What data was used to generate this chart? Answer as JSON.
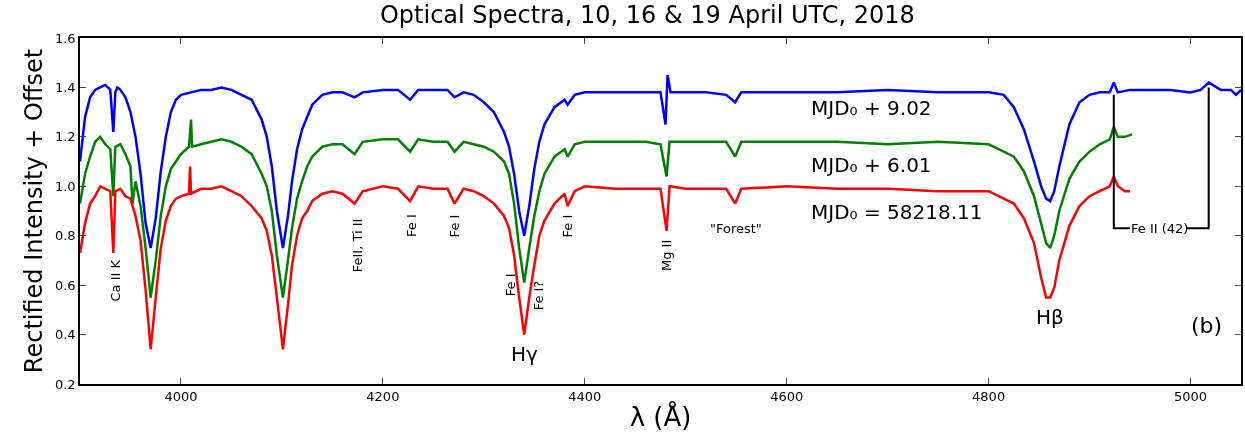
{
  "chart_data": {
    "type": "line",
    "title": "Optical Spectra, 10, 16 & 19 April UTC, 2018",
    "xlabel": "λ (Å)",
    "ylabel": "Rectified Intensity + Offset",
    "xlim": [
      3900,
      5050
    ],
    "xticks": [
      4000,
      4200,
      4400,
      4600,
      4800,
      5000
    ],
    "ylim": [
      0.2,
      1.6
    ],
    "yticks": [
      0.2,
      0.4,
      0.6,
      0.8,
      {
        "value": 1,
        "label": "1.0"
      },
      1.2,
      1.4,
      1.6
    ],
    "grid": false,
    "legend": false,
    "marker": "none",
    "line_style": "solid",
    "series": [
      {
        "name": "MJD₀ + 9.02",
        "color": "#0000ff",
        "x": [
          3900,
          3905,
          3910,
          3915,
          3920,
          3925,
          3930,
          3933,
          3935,
          3937,
          3940,
          3945,
          3950,
          3955,
          3960,
          3965,
          3970,
          3975,
          3980,
          3985,
          3990,
          3995,
          4000,
          4010,
          4020,
          4030,
          4040,
          4050,
          4060,
          4070,
          4080,
          4085,
          4090,
          4095,
          4101,
          4106,
          4110,
          4115,
          4120,
          4125,
          4130,
          4140,
          4150,
          4160,
          4172,
          4180,
          4200,
          4215,
          4227,
          4235,
          4250,
          4264,
          4271,
          4280,
          4290,
          4300,
          4310,
          4320,
          4325,
          4330,
          4335,
          4340,
          4345,
          4350,
          4355,
          4360,
          4370,
          4380,
          4383,
          4390,
          4400,
          4430,
          4460,
          4475,
          4480,
          4482,
          4485,
          4500,
          4520,
          4540,
          4549,
          4555,
          4600,
          4650,
          4700,
          4750,
          4800,
          4815,
          4825,
          4835,
          4845,
          4852,
          4857,
          4861,
          4865,
          4870,
          4880,
          4890,
          4900,
          4910,
          4920,
          4924,
          4928,
          4940,
          4960,
          4980,
          5000,
          5010,
          5018,
          5030,
          5040,
          5045,
          5050
        ],
        "values": [
          1.1,
          1.28,
          1.36,
          1.39,
          1.4,
          1.41,
          1.39,
          1.22,
          1.38,
          1.4,
          1.39,
          1.36,
          1.3,
          1.2,
          1.05,
          0.85,
          0.75,
          0.87,
          1.06,
          1.2,
          1.3,
          1.35,
          1.37,
          1.38,
          1.39,
          1.39,
          1.4,
          1.39,
          1.37,
          1.35,
          1.27,
          1.2,
          1.08,
          0.9,
          0.75,
          0.88,
          1.02,
          1.15,
          1.23,
          1.28,
          1.33,
          1.37,
          1.38,
          1.38,
          1.36,
          1.38,
          1.39,
          1.39,
          1.35,
          1.39,
          1.39,
          1.39,
          1.36,
          1.38,
          1.37,
          1.34,
          1.3,
          1.22,
          1.16,
          1.05,
          0.9,
          0.8,
          0.92,
          1.07,
          1.18,
          1.25,
          1.32,
          1.35,
          1.33,
          1.37,
          1.38,
          1.38,
          1.38,
          1.38,
          1.25,
          1.45,
          1.38,
          1.38,
          1.38,
          1.37,
          1.34,
          1.38,
          1.38,
          1.38,
          1.39,
          1.38,
          1.38,
          1.37,
          1.32,
          1.23,
          1.1,
          1.0,
          0.95,
          0.94,
          0.98,
          1.08,
          1.25,
          1.34,
          1.37,
          1.38,
          1.38,
          1.42,
          1.38,
          1.39,
          1.39,
          1.39,
          1.38,
          1.39,
          1.42,
          1.39,
          1.39,
          1.37,
          1.39
        ]
      },
      {
        "name": "MJD₀ + 6.01",
        "color": "#008000",
        "x": [
          3900,
          3905,
          3910,
          3915,
          3920,
          3925,
          3930,
          3933,
          3935,
          3940,
          3945,
          3950,
          3952,
          3955,
          3960,
          3965,
          3970,
          3975,
          3980,
          3985,
          3990,
          3995,
          4000,
          4008,
          4010,
          4011,
          4020,
          4030,
          4040,
          4050,
          4060,
          4070,
          4080,
          4085,
          4090,
          4095,
          4101,
          4106,
          4110,
          4115,
          4120,
          4125,
          4130,
          4140,
          4150,
          4160,
          4172,
          4180,
          4200,
          4215,
          4227,
          4235,
          4250,
          4264,
          4271,
          4280,
          4290,
          4300,
          4310,
          4320,
          4325,
          4330,
          4335,
          4340,
          4345,
          4350,
          4355,
          4360,
          4370,
          4380,
          4383,
          4390,
          4400,
          4430,
          4460,
          4475,
          4481,
          4484,
          4500,
          4520,
          4540,
          4549,
          4555,
          4600,
          4650,
          4700,
          4750,
          4800,
          4815,
          4825,
          4835,
          4845,
          4852,
          4857,
          4861,
          4865,
          4870,
          4880,
          4890,
          4900,
          4910,
          4920,
          4924,
          4928,
          4935,
          4942
        ],
        "values": [
          0.93,
          1.05,
          1.12,
          1.18,
          1.2,
          1.17,
          1.15,
          0.96,
          1.16,
          1.17,
          1.13,
          1.08,
          0.93,
          1.02,
          0.92,
          0.75,
          0.55,
          0.7,
          0.88,
          1.0,
          1.07,
          1.1,
          1.13,
          1.16,
          1.27,
          1.16,
          1.17,
          1.18,
          1.19,
          1.18,
          1.16,
          1.13,
          1.05,
          1.0,
          0.9,
          0.72,
          0.55,
          0.7,
          0.83,
          0.95,
          1.02,
          1.08,
          1.12,
          1.16,
          1.17,
          1.17,
          1.13,
          1.18,
          1.19,
          1.19,
          1.14,
          1.19,
          1.18,
          1.18,
          1.14,
          1.18,
          1.17,
          1.16,
          1.14,
          1.1,
          1.05,
          0.93,
          0.75,
          0.61,
          0.75,
          0.88,
          0.98,
          1.05,
          1.12,
          1.15,
          1.12,
          1.17,
          1.18,
          1.18,
          1.18,
          1.17,
          1.04,
          1.18,
          1.18,
          1.18,
          1.18,
          1.12,
          1.18,
          1.18,
          1.18,
          1.17,
          1.18,
          1.17,
          1.14,
          1.12,
          1.06,
          0.96,
          0.85,
          0.77,
          0.75,
          0.8,
          0.9,
          1.03,
          1.1,
          1.14,
          1.17,
          1.19,
          1.24,
          1.2,
          1.2,
          1.21
        ]
      },
      {
        "name": "MJD₀ = 58218.11",
        "color": "#ff0000",
        "x": [
          3900,
          3905,
          3910,
          3915,
          3920,
          3925,
          3930,
          3933,
          3935,
          3940,
          3945,
          3950,
          3955,
          3960,
          3965,
          3970,
          3975,
          3980,
          3985,
          3990,
          3995,
          4000,
          4008,
          4009,
          4010,
          4020,
          4030,
          4040,
          4050,
          4060,
          4070,
          4080,
          4085,
          4090,
          4095,
          4101,
          4106,
          4110,
          4115,
          4120,
          4125,
          4130,
          4140,
          4150,
          4160,
          4172,
          4180,
          4200,
          4215,
          4227,
          4235,
          4250,
          4264,
          4271,
          4280,
          4290,
          4300,
          4310,
          4320,
          4325,
          4330,
          4335,
          4340,
          4345,
          4350,
          4355,
          4360,
          4370,
          4380,
          4383,
          4390,
          4400,
          4430,
          4460,
          4475,
          4481,
          4484,
          4500,
          4520,
          4540,
          4549,
          4555,
          4600,
          4650,
          4700,
          4750,
          4800,
          4815,
          4825,
          4835,
          4845,
          4852,
          4857,
          4861,
          4865,
          4870,
          4880,
          4890,
          4900,
          4910,
          4920,
          4924,
          4928,
          4935,
          4940
        ],
        "values": [
          0.73,
          0.85,
          0.93,
          0.96,
          1.0,
          0.99,
          0.98,
          0.73,
          0.98,
          0.99,
          0.96,
          0.95,
          0.88,
          0.78,
          0.58,
          0.34,
          0.55,
          0.75,
          0.86,
          0.92,
          0.95,
          0.96,
          0.97,
          1.08,
          0.97,
          0.99,
          0.99,
          1.0,
          0.98,
          0.96,
          0.92,
          0.87,
          0.82,
          0.72,
          0.55,
          0.34,
          0.52,
          0.68,
          0.8,
          0.87,
          0.9,
          0.94,
          0.97,
          0.98,
          0.97,
          0.93,
          0.98,
          1.0,
          0.99,
          0.94,
          1.0,
          0.99,
          0.99,
          0.93,
          0.99,
          0.98,
          0.96,
          0.93,
          0.88,
          0.83,
          0.72,
          0.55,
          0.4,
          0.55,
          0.68,
          0.8,
          0.86,
          0.93,
          0.97,
          0.92,
          0.98,
          1.0,
          0.99,
          0.99,
          0.99,
          0.82,
          1.0,
          0.99,
          0.99,
          0.99,
          0.93,
          0.99,
          1.0,
          0.99,
          0.99,
          0.98,
          0.98,
          0.95,
          0.93,
          0.87,
          0.77,
          0.63,
          0.55,
          0.55,
          0.59,
          0.7,
          0.84,
          0.92,
          0.96,
          0.98,
          1.0,
          1.04,
          1.0,
          0.98,
          0.98
        ]
      }
    ],
    "annotations": [
      "Ca II K",
      "FeII, Ti II",
      "Fe I",
      "Fe I",
      "Fe I",
      "Fe I?",
      "Fe I",
      "Mg II",
      "\"Forest\"",
      "Hγ",
      "Hβ",
      {
        "text": "Fe II (42)",
        "x": 4924,
        "y": 1.37
      },
      "(b)"
    ]
  }
}
